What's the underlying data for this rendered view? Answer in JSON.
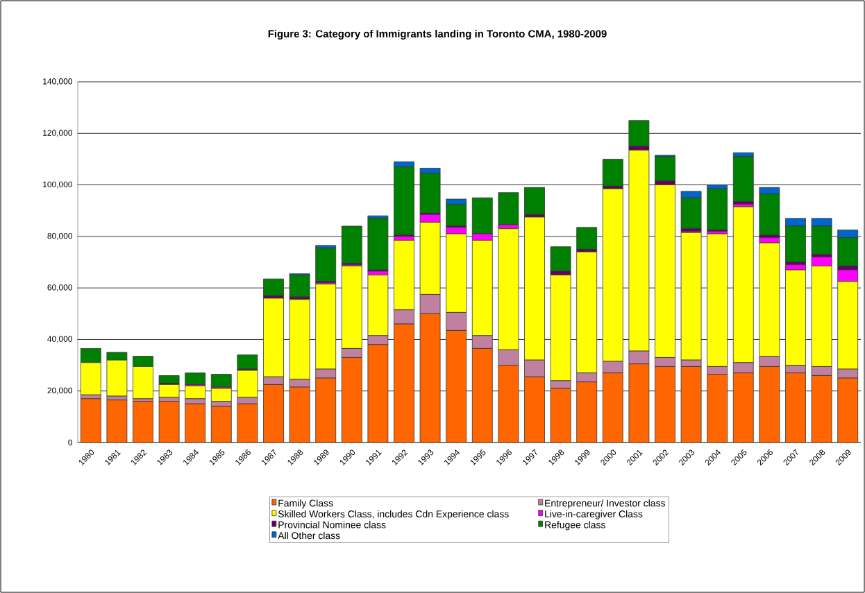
{
  "chart_data": {
    "type": "bar",
    "stacked": true,
    "title": "Figure 3: Category of Immigrants landing in Toronto CMA, 1980-2009",
    "categories": [
      "1980",
      "1981",
      "1982",
      "1983",
      "1984",
      "1985",
      "1986",
      "1987",
      "1988",
      "1989",
      "1990",
      "1991",
      "1992",
      "1993",
      "1994",
      "1995",
      "1996",
      "1997",
      "1998",
      "1999",
      "2000",
      "2001",
      "2002",
      "2003",
      "2004",
      "2005",
      "2006",
      "2007",
      "2008",
      "2009"
    ],
    "series": [
      {
        "name": "Family Class",
        "color": "#ff6600",
        "values": [
          17000,
          16500,
          16000,
          16000,
          15000,
          14000,
          15000,
          22500,
          21500,
          25000,
          33000,
          38000,
          46000,
          50000,
          43500,
          36500,
          30000,
          25500,
          21000,
          23500,
          27000,
          30500,
          29500,
          29500,
          26500,
          27000,
          29500,
          27000,
          26000,
          25000
        ]
      },
      {
        "name": "Entrepreneur/ Investor class",
        "color": "#c080a0",
        "values": [
          1500,
          1500,
          1000,
          1500,
          2000,
          2000,
          2500,
          3000,
          3000,
          3500,
          3500,
          3500,
          5500,
          7500,
          7000,
          5000,
          6000,
          6500,
          3000,
          3500,
          4500,
          5000,
          3500,
          2500,
          3000,
          4000,
          4000,
          3000,
          3500,
          3500
        ]
      },
      {
        "name": "Skilled Workers Class, includes Cdn Experience class",
        "color": "#ffff00",
        "values": [
          12500,
          14000,
          12500,
          5000,
          5000,
          5000,
          10500,
          30500,
          31000,
          33000,
          32000,
          23500,
          27000,
          28000,
          30500,
          37000,
          47000,
          55500,
          41000,
          47000,
          67000,
          78000,
          67000,
          49500,
          51500,
          60500,
          44000,
          37000,
          39000,
          34000
        ]
      },
      {
        "name": "Live-in-caregiver Class",
        "color": "#ff00ff",
        "values": [
          0,
          0,
          0,
          0,
          500,
          500,
          0,
          0,
          0,
          500,
          500,
          1500,
          1500,
          3000,
          2500,
          2500,
          1500,
          0,
          0,
          null,
          0,
          0,
          0,
          500,
          1000,
          1000,
          2000,
          2000,
          3500,
          4500
        ]
      },
      {
        "name": "Provincial Nominee class",
        "color": "#660066",
        "values": [
          0,
          0,
          0,
          500,
          0,
          0,
          500,
          1000,
          1000,
          500,
          500,
          500,
          500,
          500,
          500,
          null,
          null,
          1000,
          1500,
          1000,
          1000,
          1500,
          1500,
          1000,
          500,
          1000,
          1000,
          1000,
          1000,
          1500
        ]
      },
      {
        "name": "Refugee class",
        "color": "#008000",
        "values": [
          5500,
          3000,
          4000,
          3000,
          4500,
          5000,
          5500,
          6500,
          8500,
          13000,
          14500,
          20000,
          26500,
          15500,
          8500,
          14000,
          12500,
          10500,
          9500,
          8500,
          10500,
          10000,
          9500,
          12000,
          16000,
          17500,
          16000,
          14000,
          11000,
          11000
        ]
      },
      {
        "name": "All Other class",
        "color": "#0066cc",
        "values": [
          0,
          0,
          0,
          0,
          0,
          0,
          0,
          0,
          500,
          1000,
          0,
          1000,
          2000,
          2000,
          2000,
          0,
          0,
          0,
          0,
          0,
          0,
          0,
          500,
          2500,
          1500,
          1500,
          2500,
          3000,
          3000,
          3000
        ]
      }
    ],
    "ylim": [
      0,
      140000
    ],
    "yticks": [
      {
        "value": 0,
        "label": "0"
      },
      {
        "value": 20000,
        "label": "20,000"
      },
      {
        "value": 40000,
        "label": "40,000"
      },
      {
        "value": 60000,
        "label": "60,000"
      },
      {
        "value": 80000,
        "label": "80,000"
      },
      {
        "value": 100000,
        "label": "100,000"
      },
      {
        "value": 120000,
        "label": "120,000"
      },
      {
        "value": 140000,
        "label": "140,000"
      }
    ],
    "grid": "y",
    "legend": "bottom"
  }
}
